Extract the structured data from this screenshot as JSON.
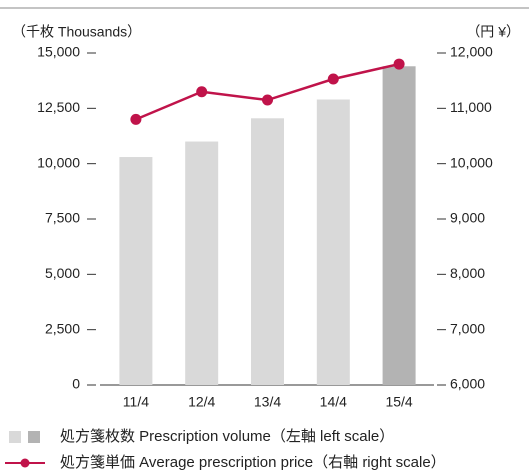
{
  "chart_data": {
    "type": "bar_line",
    "y_unit_label": "（千枚 Thousands）",
    "y2_unit_label": "（円 ¥）",
    "categories": [
      "11/4",
      "12/4",
      "13/4",
      "14/4",
      "15/4"
    ],
    "series": [
      {
        "name": "処方箋枚数 Prescription volume（左軸 left scale）",
        "type": "bar",
        "axis": "y",
        "colors": [
          "#d9d9d9",
          "#d9d9d9",
          "#d9d9d9",
          "#d9d9d9",
          "#b3b3b3"
        ],
        "values": [
          10300,
          11000,
          12050,
          12900,
          14400
        ]
      },
      {
        "name": "処方箋単価 Average prescription price（右軸 right scale）",
        "type": "line",
        "axis": "y2",
        "color": "#c0134a",
        "values": [
          10800,
          11300,
          11150,
          11530,
          11800
        ]
      }
    ],
    "ylim": [
      0,
      15000
    ],
    "yticks": [
      0,
      {
        "value": 2500,
        "label": "2,500"
      },
      {
        "value": 5000,
        "label": "5,000"
      },
      {
        "value": 7500,
        "label": "7,500"
      },
      {
        "value": 10000,
        "label": "10,000"
      },
      {
        "value": 12500,
        "label": "12,500"
      },
      {
        "value": 15000,
        "label": "15,000"
      }
    ],
    "y2lim": [
      6000,
      12000
    ],
    "y2ticks": [
      {
        "value": 6000,
        "label": "6,000"
      },
      {
        "value": 7000,
        "label": "7,000"
      },
      {
        "value": 8000,
        "label": "8,000"
      },
      {
        "value": 9000,
        "label": "9,000"
      },
      {
        "value": 10000,
        "label": "10,000"
      },
      {
        "value": 11000,
        "label": "11,000"
      },
      {
        "value": 12000,
        "label": "12,000"
      }
    ]
  }
}
